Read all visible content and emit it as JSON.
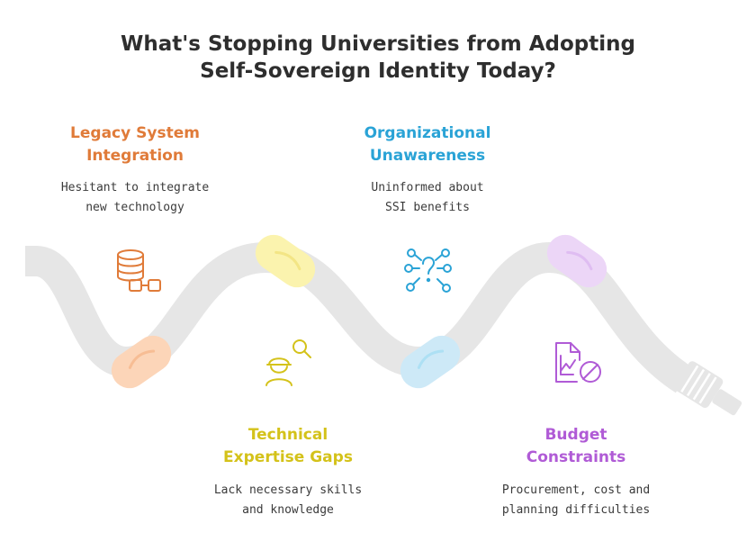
{
  "title": {
    "line1": "What's Stopping Universities from Adopting",
    "line2": "Self-Sovereign Identity Today?"
  },
  "steps": [
    {
      "heading_line1": "Legacy System",
      "heading_line2": "Integration",
      "desc_line1": "Hesitant to integrate",
      "desc_line2": "new technology",
      "color": "#e07b39",
      "icon": "database-link-icon"
    },
    {
      "heading_line1": "Organizational",
      "heading_line2": "Unawareness",
      "desc_line1": "Uninformed about",
      "desc_line2": "SSI benefits",
      "color": "#2aa3d6",
      "icon": "question-network-icon"
    },
    {
      "heading_line1": "Technical",
      "heading_line2": "Expertise Gaps",
      "desc_line1": "Lack necessary skills",
      "desc_line2": "and knowledge",
      "color": "#d4c21a",
      "icon": "worker-search-icon"
    },
    {
      "heading_line1": "Budget",
      "heading_line2": "Constraints",
      "desc_line1": "Procurement, cost and",
      "desc_line2": "planning difficulties",
      "color": "#b05bd6",
      "icon": "chart-blocked-icon"
    }
  ],
  "colors": {
    "track": "#e6e6e6",
    "title": "#2e2e2e",
    "orange_clip": "#fcd5b8",
    "yellow_clip": "#fbf3ae",
    "blue_clip": "#cde9f7",
    "purple_clip": "#ecd6f7"
  }
}
